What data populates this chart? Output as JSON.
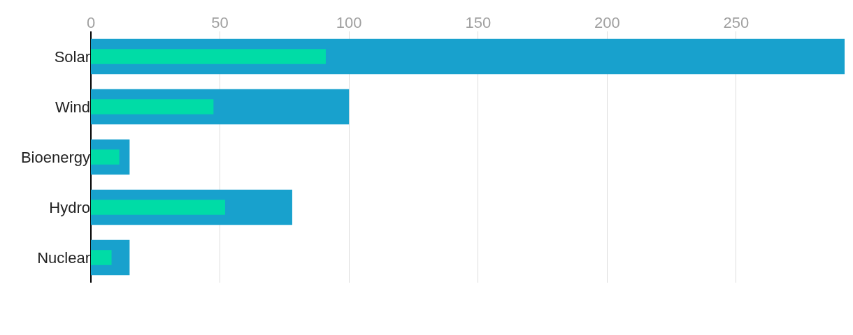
{
  "chart_data": {
    "type": "bar",
    "orientation": "horizontal",
    "categories": [
      "Solar",
      "Wind",
      "Bioenergy",
      "Hydro",
      "Nuclear"
    ],
    "series": [
      {
        "color": "#18a1cd",
        "values": [
          292,
          100,
          15,
          78,
          15
        ]
      },
      {
        "color": "#00dca6",
        "values": [
          91,
          47.5,
          11,
          52,
          8
        ]
      }
    ],
    "xlim": [
      0,
      292
    ],
    "xticks": [
      0,
      50,
      100,
      150,
      200,
      250
    ],
    "grid": "x",
    "legend": false
  }
}
